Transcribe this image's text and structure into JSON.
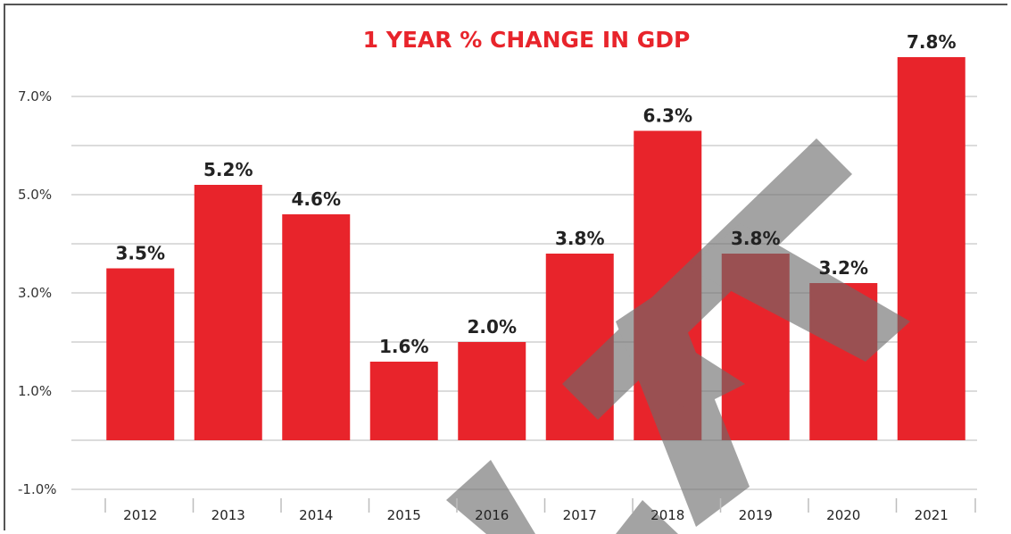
{
  "chart_data": {
    "type": "bar",
    "title": "1 YEAR % CHANGE IN GDP",
    "categories": [
      "2012",
      "2013",
      "2014",
      "2015",
      "2016",
      "2017",
      "2018",
      "2019",
      "2020",
      "2021"
    ],
    "values": [
      3.5,
      5.2,
      4.6,
      1.6,
      2.0,
      3.8,
      6.3,
      3.8,
      3.2,
      7.8
    ],
    "data_labels": [
      "3.5%",
      "5.2%",
      "4.6%",
      "1.6%",
      "2.0%",
      "3.8%",
      "6.3%",
      "3.8%",
      "3.2%",
      "7.8%"
    ],
    "yticks": [
      "7.0%",
      "5.0%",
      "3.0%",
      "1.0%",
      "-1.0%"
    ],
    "xlabel": "",
    "ylabel": "",
    "grid": true,
    "bar_color": "#e8242b",
    "watermark_color": "#6b6b6b"
  }
}
